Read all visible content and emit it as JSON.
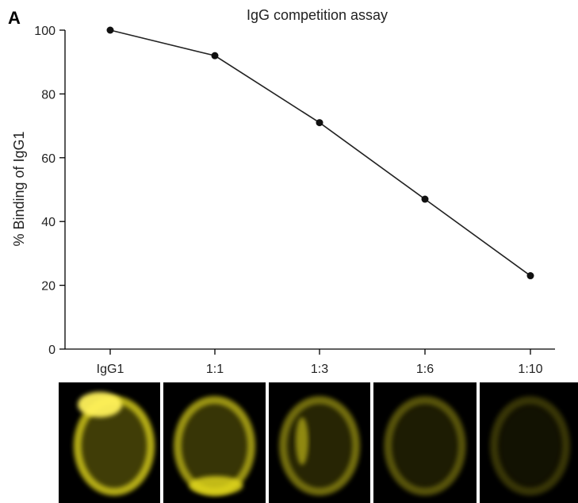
{
  "panel_letter": "A",
  "chart_data": {
    "type": "line",
    "title": "IgG competition assay",
    "ylabel": "% Binding of IgG1",
    "xlabel": "",
    "categories": [
      "IgG1",
      "1:1",
      "1:3",
      "1:6",
      "1:10"
    ],
    "series": [
      {
        "name": "",
        "values": [
          100,
          92,
          71,
          47,
          23
        ]
      }
    ],
    "ylim": [
      0,
      100
    ],
    "yticks": [
      0,
      20,
      40,
      60,
      80,
      100
    ],
    "grid": false,
    "legend": "none",
    "line_color": "#222222",
    "marker_color": "#111111"
  },
  "micrographs": {
    "background_color": "#000000",
    "stain_color": "#e6dc1a",
    "signal_levels": [
      1.0,
      0.85,
      0.6,
      0.45,
      0.28
    ]
  }
}
